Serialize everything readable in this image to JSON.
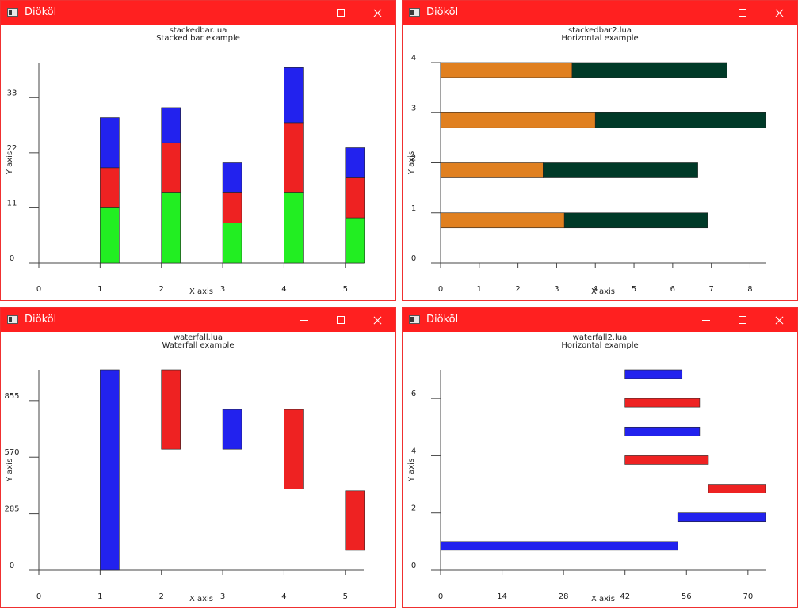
{
  "windows": [
    {
      "title": "Diököl",
      "chart_data": {
        "type": "bar",
        "stacked": true,
        "orientation": "vertical",
        "title": "stackedbar.lua",
        "subtitle": "Stacked bar example",
        "xlabel": "X axis",
        "ylabel": "Y axis",
        "xlim": [
          0,
          5.3
        ],
        "ylim": [
          0,
          40
        ],
        "xticks": [
          0,
          1,
          2,
          3,
          4,
          5
        ],
        "yticks": [
          0,
          11,
          22,
          33
        ],
        "categories": [
          1,
          2,
          3,
          4,
          5
        ],
        "series": [
          {
            "color": "#22ee22",
            "values": [
              11,
              14,
              8,
              14,
              9
            ]
          },
          {
            "color": "#ee2222",
            "values": [
              8,
              10,
              6,
              14,
              8
            ]
          },
          {
            "color": "#2222ee",
            "values": [
              10,
              7,
              6,
              11,
              6
            ]
          }
        ]
      }
    },
    {
      "title": "Diököl",
      "chart_data": {
        "type": "bar",
        "stacked": true,
        "orientation": "horizontal",
        "title": "stackedbar2.lua",
        "subtitle": "Horizontal example",
        "xlabel": "X axis",
        "ylabel": "Y axis",
        "xlim": [
          0,
          8.4
        ],
        "ylim": [
          0,
          4
        ],
        "xticks": [
          0,
          1,
          2,
          3,
          4,
          5,
          6,
          7,
          8
        ],
        "yticks": [
          0,
          1,
          2,
          3,
          4
        ],
        "categories": [
          1,
          2,
          3,
          4
        ],
        "series": [
          {
            "color": "#e08020",
            "values": [
              3.2,
              2.65,
              4.0,
              3.4
            ]
          },
          {
            "color": "#003a28",
            "values": [
              3.7,
              4.0,
              4.4,
              4.0
            ]
          }
        ]
      }
    },
    {
      "title": "Diököl",
      "chart_data": {
        "type": "bar",
        "waterfall": true,
        "orientation": "vertical",
        "title": "waterfall.lua",
        "subtitle": "Waterfall example",
        "xlabel": "X axis",
        "ylabel": "Y axis",
        "xlim": [
          0,
          5.3
        ],
        "ylim": [
          0,
          1010
        ],
        "xticks": [
          0,
          1,
          2,
          3,
          4,
          5
        ],
        "yticks": [
          0,
          285,
          570,
          855
        ],
        "bars": [
          {
            "x": 1,
            "low": 0,
            "high": 1010,
            "color": "#2222ee"
          },
          {
            "x": 2,
            "low": 610,
            "high": 1010,
            "color": "#ee2222"
          },
          {
            "x": 3,
            "low": 610,
            "high": 810,
            "color": "#2222ee"
          },
          {
            "x": 4,
            "low": 410,
            "high": 810,
            "color": "#ee2222"
          },
          {
            "x": 5,
            "low": 100,
            "high": 400,
            "color": "#ee2222"
          }
        ]
      }
    },
    {
      "title": "Diököl",
      "chart_data": {
        "type": "bar",
        "waterfall": true,
        "orientation": "horizontal",
        "title": "waterfall2.lua",
        "subtitle": "Horizontal example",
        "xlabel": "X axis",
        "ylabel": "Y axis",
        "xlim": [
          0,
          74
        ],
        "ylim": [
          0,
          7
        ],
        "xticks": [
          0,
          14,
          28,
          42,
          56,
          70
        ],
        "yticks": [
          0,
          2,
          4,
          6
        ],
        "bars": [
          {
            "y": 1,
            "low": 0,
            "high": 54,
            "color": "#2222ee"
          },
          {
            "y": 2,
            "low": 54,
            "high": 74,
            "color": "#2222ee"
          },
          {
            "y": 3,
            "low": 61,
            "high": 74,
            "color": "#ee2222"
          },
          {
            "y": 4,
            "low": 42,
            "high": 61,
            "color": "#ee2222"
          },
          {
            "y": 5,
            "low": 42,
            "high": 59,
            "color": "#2222ee"
          },
          {
            "y": 6,
            "low": 42,
            "high": 59,
            "color": "#ee2222"
          },
          {
            "y": 7,
            "low": 42,
            "high": 55,
            "color": "#2222ee"
          }
        ]
      }
    }
  ]
}
